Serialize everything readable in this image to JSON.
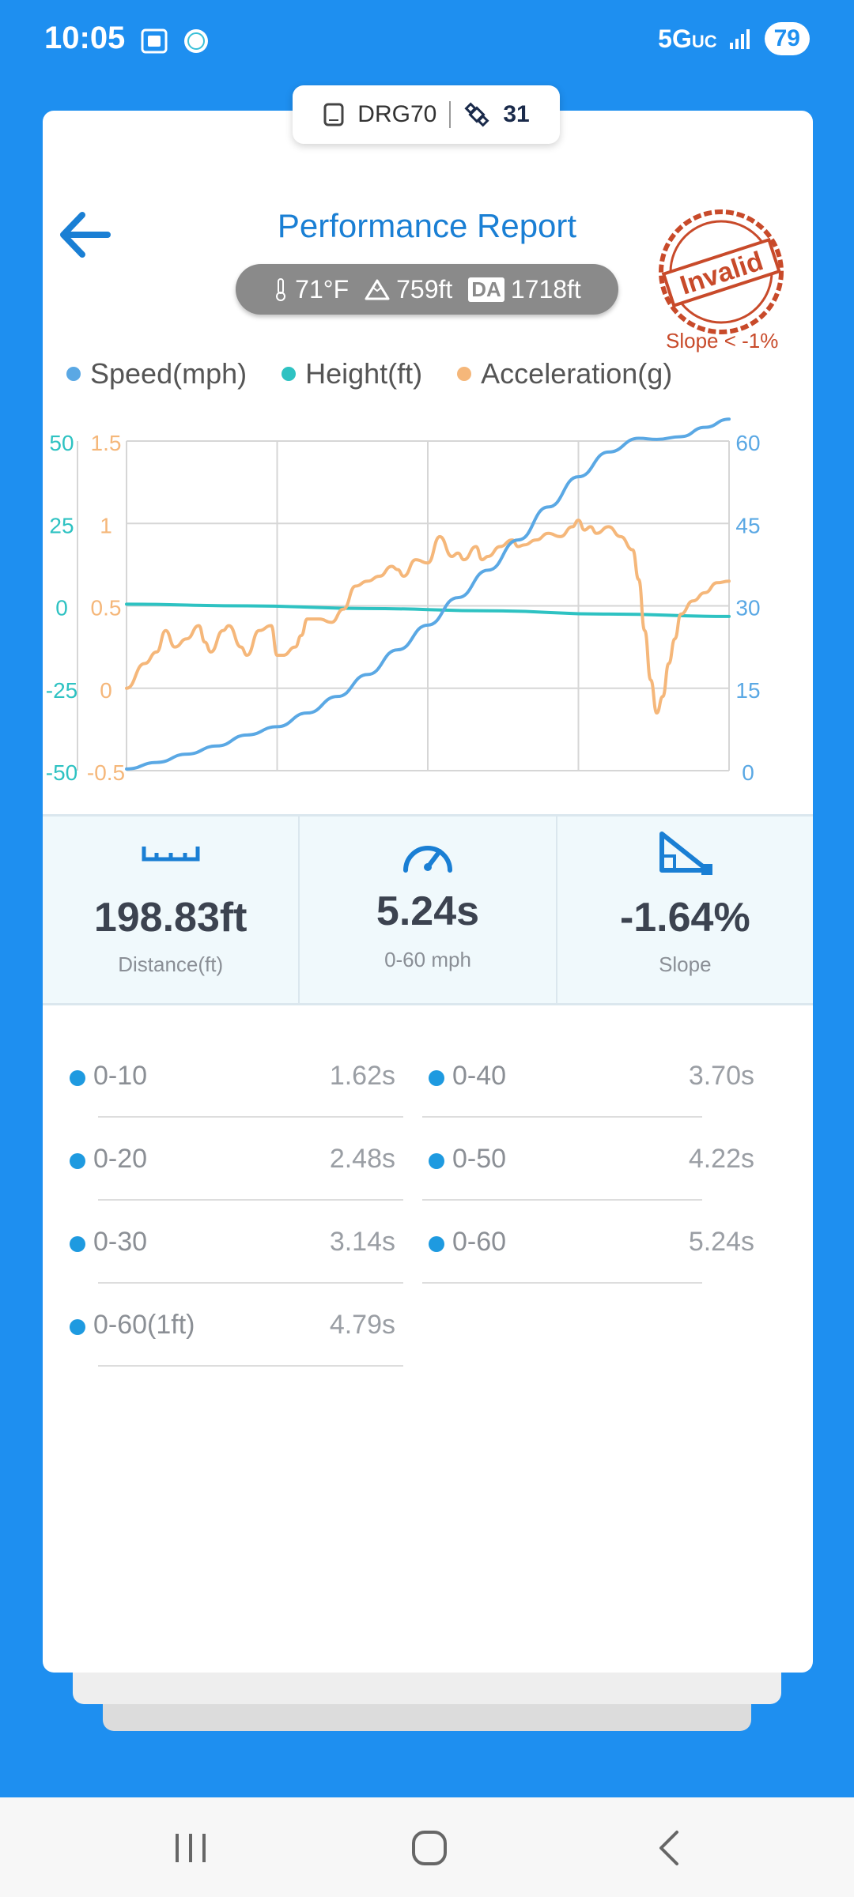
{
  "status_bar": {
    "time": "10:05",
    "network": "5G",
    "network_suffix": "UC",
    "battery": "79",
    "icons": [
      "screenshot-icon",
      "app-notification-icon",
      "signal-icon"
    ]
  },
  "device": {
    "name": "DRG70",
    "satellites": "31"
  },
  "header": {
    "title": "Performance Report",
    "stamp_text": "Invalid",
    "slope_note": "Slope < -1%"
  },
  "conditions": {
    "temperature": "71°F",
    "altitude": "759ft",
    "da_label": "DA",
    "density_altitude": "1718ft"
  },
  "colors": {
    "speed": "#5aa8e4",
    "height": "#2ec2c2",
    "acceleration": "#f5b77a",
    "accent": "#1a7fd4",
    "stamp": "#c84a2a"
  },
  "chart_data": {
    "type": "line",
    "legend": [
      "Speed(mph)",
      "Height(ft)",
      "Acceleration(g)"
    ],
    "grid": true,
    "axes": {
      "height": {
        "ticks": [
          "50",
          "25",
          "0",
          "-25",
          "-50"
        ],
        "range": [
          -50,
          50
        ]
      },
      "acceleration": {
        "ticks": [
          "1.5",
          "1",
          "0.5",
          "0",
          "-0.5"
        ],
        "range": [
          -0.5,
          1.5
        ]
      },
      "speed": {
        "ticks": [
          "60",
          "45",
          "30",
          "15",
          "0"
        ],
        "range": [
          0,
          60
        ]
      }
    },
    "x_range": [
      0,
      100
    ],
    "series": [
      {
        "name": "Speed(mph)",
        "axis": "speed",
        "x": [
          0,
          5,
          10,
          15,
          20,
          25,
          30,
          35,
          40,
          45,
          50,
          55,
          60,
          65,
          70,
          75,
          80,
          85,
          88,
          92,
          96,
          100
        ],
        "values": [
          0.3,
          1.5,
          3,
          4.5,
          6.5,
          8,
          10.5,
          13.5,
          17.5,
          22,
          26.5,
          31.5,
          36.5,
          42,
          48,
          53.5,
          58,
          60.5,
          60.3,
          60.8,
          62.5,
          64
        ]
      },
      {
        "name": "Height(ft)",
        "axis": "height",
        "x": [
          0,
          20,
          40,
          60,
          80,
          100
        ],
        "values": [
          0.5,
          0,
          -0.8,
          -1.5,
          -2.5,
          -3.2
        ]
      },
      {
        "name": "Acceleration(g)",
        "axis": "acceleration",
        "x": [
          0,
          3,
          5,
          6.5,
          8,
          10,
          12,
          13,
          14,
          16,
          17,
          19,
          20,
          22,
          24,
          25,
          26,
          28,
          29,
          30,
          32,
          34,
          36,
          38,
          40,
          42,
          44,
          45,
          46,
          48,
          50,
          52,
          54,
          55,
          56,
          58,
          59,
          60,
          62,
          64,
          65,
          66,
          68,
          70,
          72,
          74,
          75,
          76,
          77,
          78,
          80,
          82,
          84,
          85,
          86,
          87,
          88,
          89,
          90,
          91,
          92,
          94,
          96,
          98,
          100
        ],
        "values": [
          0,
          0.15,
          0.22,
          0.35,
          0.25,
          0.3,
          0.38,
          0.28,
          0.22,
          0.35,
          0.38,
          0.25,
          0.2,
          0.35,
          0.38,
          0.2,
          0.2,
          0.25,
          0.32,
          0.42,
          0.42,
          0.4,
          0.48,
          0.62,
          0.65,
          0.68,
          0.74,
          0.72,
          0.68,
          0.78,
          0.76,
          0.92,
          0.8,
          0.82,
          0.78,
          0.86,
          0.78,
          0.8,
          0.86,
          0.9,
          0.86,
          0.87,
          0.9,
          0.94,
          0.92,
          0.98,
          1.02,
          0.96,
          0.98,
          0.94,
          0.98,
          0.92,
          0.84,
          0.66,
          0.35,
          0.05,
          -0.15,
          -0.05,
          0.15,
          0.3,
          0.45,
          0.53,
          0.58,
          0.64,
          0.65
        ]
      }
    ]
  },
  "stats": [
    {
      "icon": "ruler-icon",
      "value": "198.83ft",
      "label": "Distance(ft)"
    },
    {
      "icon": "speedometer-icon",
      "value": "5.24s",
      "label": "0-60 mph"
    },
    {
      "icon": "slope-icon",
      "value": "-1.64%",
      "label": "Slope"
    }
  ],
  "splits": [
    {
      "name": "0-10",
      "time": "1.62s"
    },
    {
      "name": "0-40",
      "time": "3.70s"
    },
    {
      "name": "0-20",
      "time": "2.48s"
    },
    {
      "name": "0-50",
      "time": "4.22s"
    },
    {
      "name": "0-30",
      "time": "3.14s"
    },
    {
      "name": "0-60",
      "time": "5.24s"
    },
    {
      "name": "0-60(1ft)",
      "time": "4.79s"
    }
  ],
  "nav": {
    "icons": [
      "recent-apps-icon",
      "home-icon",
      "back-icon"
    ]
  }
}
